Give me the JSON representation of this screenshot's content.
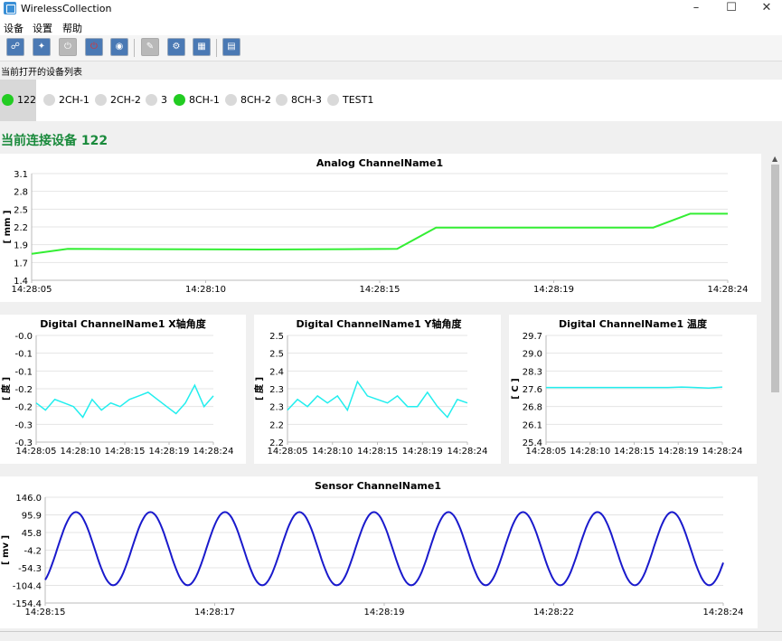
{
  "window": {
    "title": "WirelessCollection",
    "controls": [
      "–",
      "☐",
      "✕"
    ]
  },
  "menu": [
    "设备",
    "设置",
    "帮助"
  ],
  "toolbar": {
    "buttons": [
      {
        "icon": "link-icon",
        "glyph": "⛓",
        "enabled": true
      },
      {
        "icon": "wrench-icon",
        "glyph": "🔧",
        "enabled": true
      },
      {
        "icon": "power-icon",
        "glyph": "⏻",
        "enabled": false
      },
      {
        "icon": "power-off-icon",
        "glyph": "⏻",
        "enabled": true
      },
      {
        "icon": "location-pin-icon",
        "glyph": "⌖",
        "enabled": true
      },
      {
        "icon": "edit-icon",
        "glyph": "✎",
        "enabled": false
      },
      {
        "icon": "gear-icon",
        "glyph": "⚙",
        "enabled": true
      },
      {
        "icon": "grid-icon",
        "glyph": "▦",
        "enabled": true
      },
      {
        "icon": "document-icon",
        "glyph": "▤",
        "enabled": true
      }
    ]
  },
  "device_list_label": "当前打开的设备列表",
  "devices": [
    {
      "name": "122",
      "connected": true,
      "selected": true
    },
    {
      "name": "2CH-1",
      "connected": false,
      "selected": false
    },
    {
      "name": "2CH-2",
      "connected": false,
      "selected": false
    },
    {
      "name": "3",
      "connected": false,
      "selected": false
    },
    {
      "name": "8CH-1",
      "connected": true,
      "selected": false
    },
    {
      "name": "8CH-2",
      "connected": false,
      "selected": false
    },
    {
      "name": "8CH-3",
      "connected": false,
      "selected": false
    },
    {
      "name": "TEST1",
      "connected": false,
      "selected": false
    }
  ],
  "connected_device_title": "当前连接设备 122",
  "colors": {
    "accent_green": "#1a8a3c",
    "status_on": "#22cc22",
    "status_off": "#d9d9d9",
    "analog_line": "#33ee33",
    "digital_line": "#22eeee",
    "sensor_line": "#1a1acc"
  },
  "chart_data": [
    {
      "type": "line",
      "title": "Analog ChannelName1",
      "ylabel": "[ mm ]",
      "yticks": [
        "3.1",
        "2.8",
        "2.5",
        "2.2",
        "1.9",
        "1.7",
        "1.4"
      ],
      "ylim": [
        1.4,
        3.1
      ],
      "xticks": [
        "14:28:05",
        "14:28:10",
        "14:28:15",
        "14:28:19",
        "14:28:24"
      ],
      "series": [
        {
          "x": [
            0,
            1,
            2,
            5,
            9,
            10,
            11,
            16,
            17,
            18
          ],
          "y": [
            1.82,
            1.9,
            1.9,
            1.9,
            1.89,
            1.89,
            1.9,
            2.24,
            2.24,
            2.46
          ],
          "note_x_fraction_of_axis": [
            0,
            0.052,
            0.13,
            0.33,
            0.5,
            0.6,
            0.525,
            0.581,
            0.893,
            0.946,
            1.0
          ]
        }
      ]
    },
    {
      "type": "line",
      "title": "Digital ChannelName1 X轴角度",
      "ylabel": "[ 度 ]",
      "yticks": [
        "-0.0",
        "-0.1",
        "-0.1",
        "-0.2",
        "-0.2",
        "-0.3",
        "-0.3"
      ],
      "ylim": [
        -0.3,
        0.0
      ],
      "xticks": [
        "14:28:05",
        "14:28:10",
        "14:28:15",
        "14:28:19",
        "14:28:24"
      ],
      "series": [
        {
          "y": [
            -0.19,
            -0.21,
            -0.18,
            -0.19,
            -0.2,
            -0.23,
            -0.18,
            -0.21,
            -0.19,
            -0.2,
            -0.18,
            -0.17,
            -0.16,
            -0.18,
            -0.2,
            -0.22,
            -0.19,
            -0.14,
            -0.2,
            -0.17
          ]
        }
      ]
    },
    {
      "type": "line",
      "title": "Digital ChannelName1 Y轴角度",
      "ylabel": "[ 度 ]",
      "yticks": [
        "2.5",
        "2.5",
        "2.4",
        "2.3",
        "2.3",
        "2.2",
        "2.2"
      ],
      "ylim": [
        2.2,
        2.5
      ],
      "xticks": [
        "14:28:05",
        "14:28:10",
        "14:28:15",
        "14:28:19",
        "14:28:24"
      ],
      "series": [
        {
          "y": [
            2.29,
            2.32,
            2.3,
            2.33,
            2.31,
            2.33,
            2.29,
            2.37,
            2.33,
            2.32,
            2.31,
            2.33,
            2.3,
            2.3,
            2.34,
            2.3,
            2.27,
            2.32,
            2.31
          ]
        }
      ]
    },
    {
      "type": "line",
      "title": "Digital ChannelName1 温度",
      "ylabel": "[ C ]",
      "yticks": [
        "29.7",
        "29.0",
        "28.3",
        "27.6",
        "26.8",
        "26.1",
        "25.4"
      ],
      "ylim": [
        25.4,
        29.7
      ],
      "xticks": [
        "14:28:05",
        "14:28:10",
        "14:28:15",
        "14:28:19",
        "14:28:24"
      ],
      "series": [
        {
          "y": [
            27.6,
            27.6,
            27.6,
            27.6,
            27.6,
            27.6,
            27.6,
            27.6,
            27.6,
            27.6,
            27.62,
            27.6,
            27.58,
            27.62
          ]
        }
      ]
    },
    {
      "type": "line",
      "title": "Sensor ChannelName1",
      "ylabel": "[ mv ]",
      "yticks": [
        "146.0",
        "95.9",
        "45.8",
        "-4.2",
        "-54.3",
        "-104.4",
        "-154.4"
      ],
      "ylim": [
        -154.4,
        146.0
      ],
      "xticks": [
        "14:28:15",
        "14:28:17",
        "14:28:19",
        "14:28:22",
        "14:28:24"
      ],
      "series": [
        {
          "amplitude": 104,
          "cycles": 9.1
        }
      ]
    }
  ]
}
